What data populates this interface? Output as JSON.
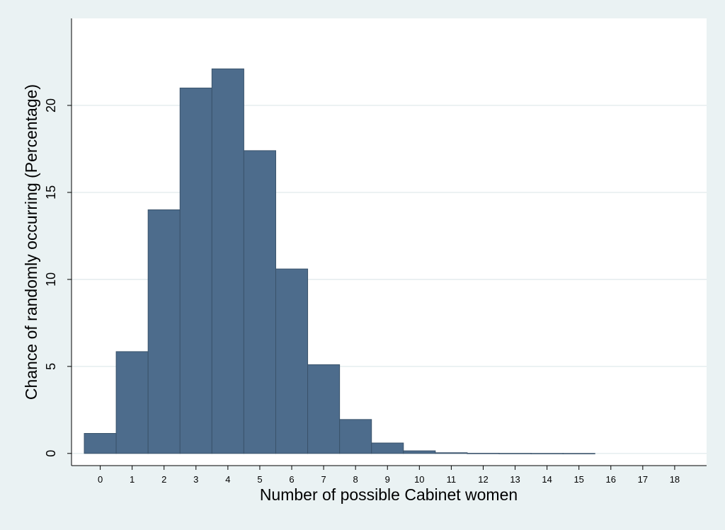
{
  "chart_data": {
    "type": "bar",
    "xlabel": "Number of possible Cabinet women",
    "ylabel": "Chance of randomly occurring (Percentage)",
    "x_ticks": [
      "0",
      "1",
      "2",
      "3",
      "4",
      "5",
      "6",
      "7",
      "8",
      "9",
      "10",
      "11",
      "12",
      "13",
      "14",
      "15",
      "16",
      "17",
      "18"
    ],
    "y_ticks": [
      "0",
      "5",
      "10",
      "15",
      "20"
    ],
    "xlim": [
      -0.9,
      19.0
    ],
    "ylim": [
      -0.7,
      25.0
    ],
    "grid": true,
    "categories": [
      0,
      1,
      2,
      3,
      4,
      5,
      6,
      7,
      8,
      9,
      10,
      11,
      12,
      13,
      14,
      15,
      16,
      17,
      18
    ],
    "values": [
      1.15,
      5.85,
      14.0,
      21.0,
      22.1,
      17.4,
      10.6,
      5.1,
      1.95,
      0.6,
      0.15,
      0.04,
      0.01,
      0.005,
      0.002,
      0.001,
      0,
      0,
      0
    ],
    "colors": {
      "bar_fill": "#4d6c8c",
      "bar_edge": "#3a536b",
      "plot_bg": "#ffffff",
      "outer_bg": "#eaf2f3",
      "grid": "#e3ecee",
      "axis": "#000000"
    }
  }
}
